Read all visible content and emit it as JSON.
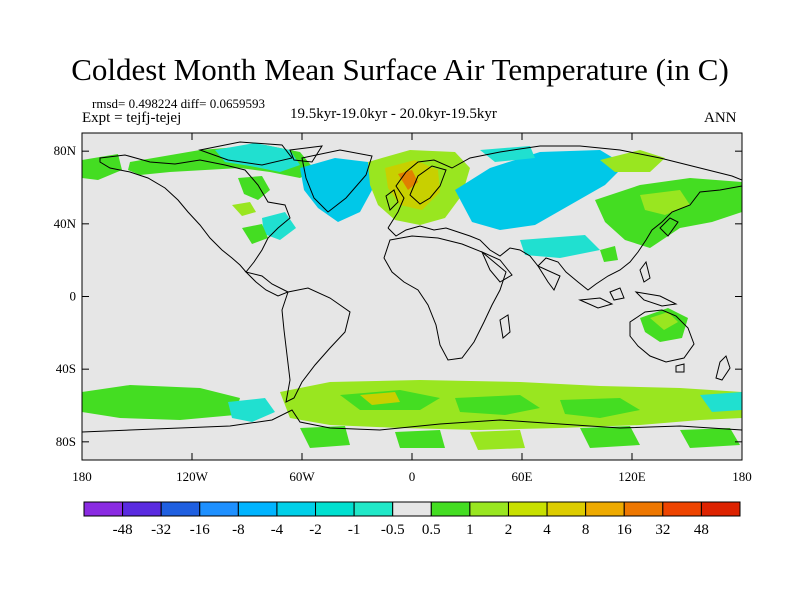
{
  "title": "Coldest Month Mean Surface Air Temperature (in C)",
  "stats": "rmsd= 0.498224 diff= 0.0659593",
  "expt": "Expt = tejfj-tejej",
  "period": "19.5kyr-19.0kyr - 20.0kyr-19.5kyr",
  "season": "ANN",
  "axes": {
    "y_ticks": [
      "80N",
      "40N",
      "0",
      "40S",
      "80S"
    ],
    "x_ticks": [
      "180",
      "120W",
      "60W",
      "0",
      "60E",
      "120E",
      "180"
    ]
  },
  "colorbar": {
    "labels": [
      "-48",
      "-32",
      "-16",
      "-8",
      "-4",
      "-2",
      "-1",
      "-0.5",
      "0.5",
      "1",
      "2",
      "4",
      "8",
      "16",
      "32",
      "48"
    ],
    "colors": [
      "#8a2be2",
      "#5a2be0",
      "#1f5fe0",
      "#1e90ff",
      "#00b4ff",
      "#00cfe8",
      "#00e0d0",
      "#20e8c8",
      "#e6e6e6",
      "#44dd22",
      "#99e620",
      "#c8e000",
      "#ddcc00",
      "#eeaa00",
      "#ee7700",
      "#ee4400",
      "#dd2200"
    ]
  },
  "map_colors": {
    "background": "#e6e6e6",
    "coast": "#000000",
    "neg_small": "#20e0d0",
    "neg_mid": "#00c8e8",
    "pos_small": "#44dd22",
    "pos_mid": "#99e620",
    "pos_high": "#c8d000",
    "pos_peak": "#e08000"
  }
}
